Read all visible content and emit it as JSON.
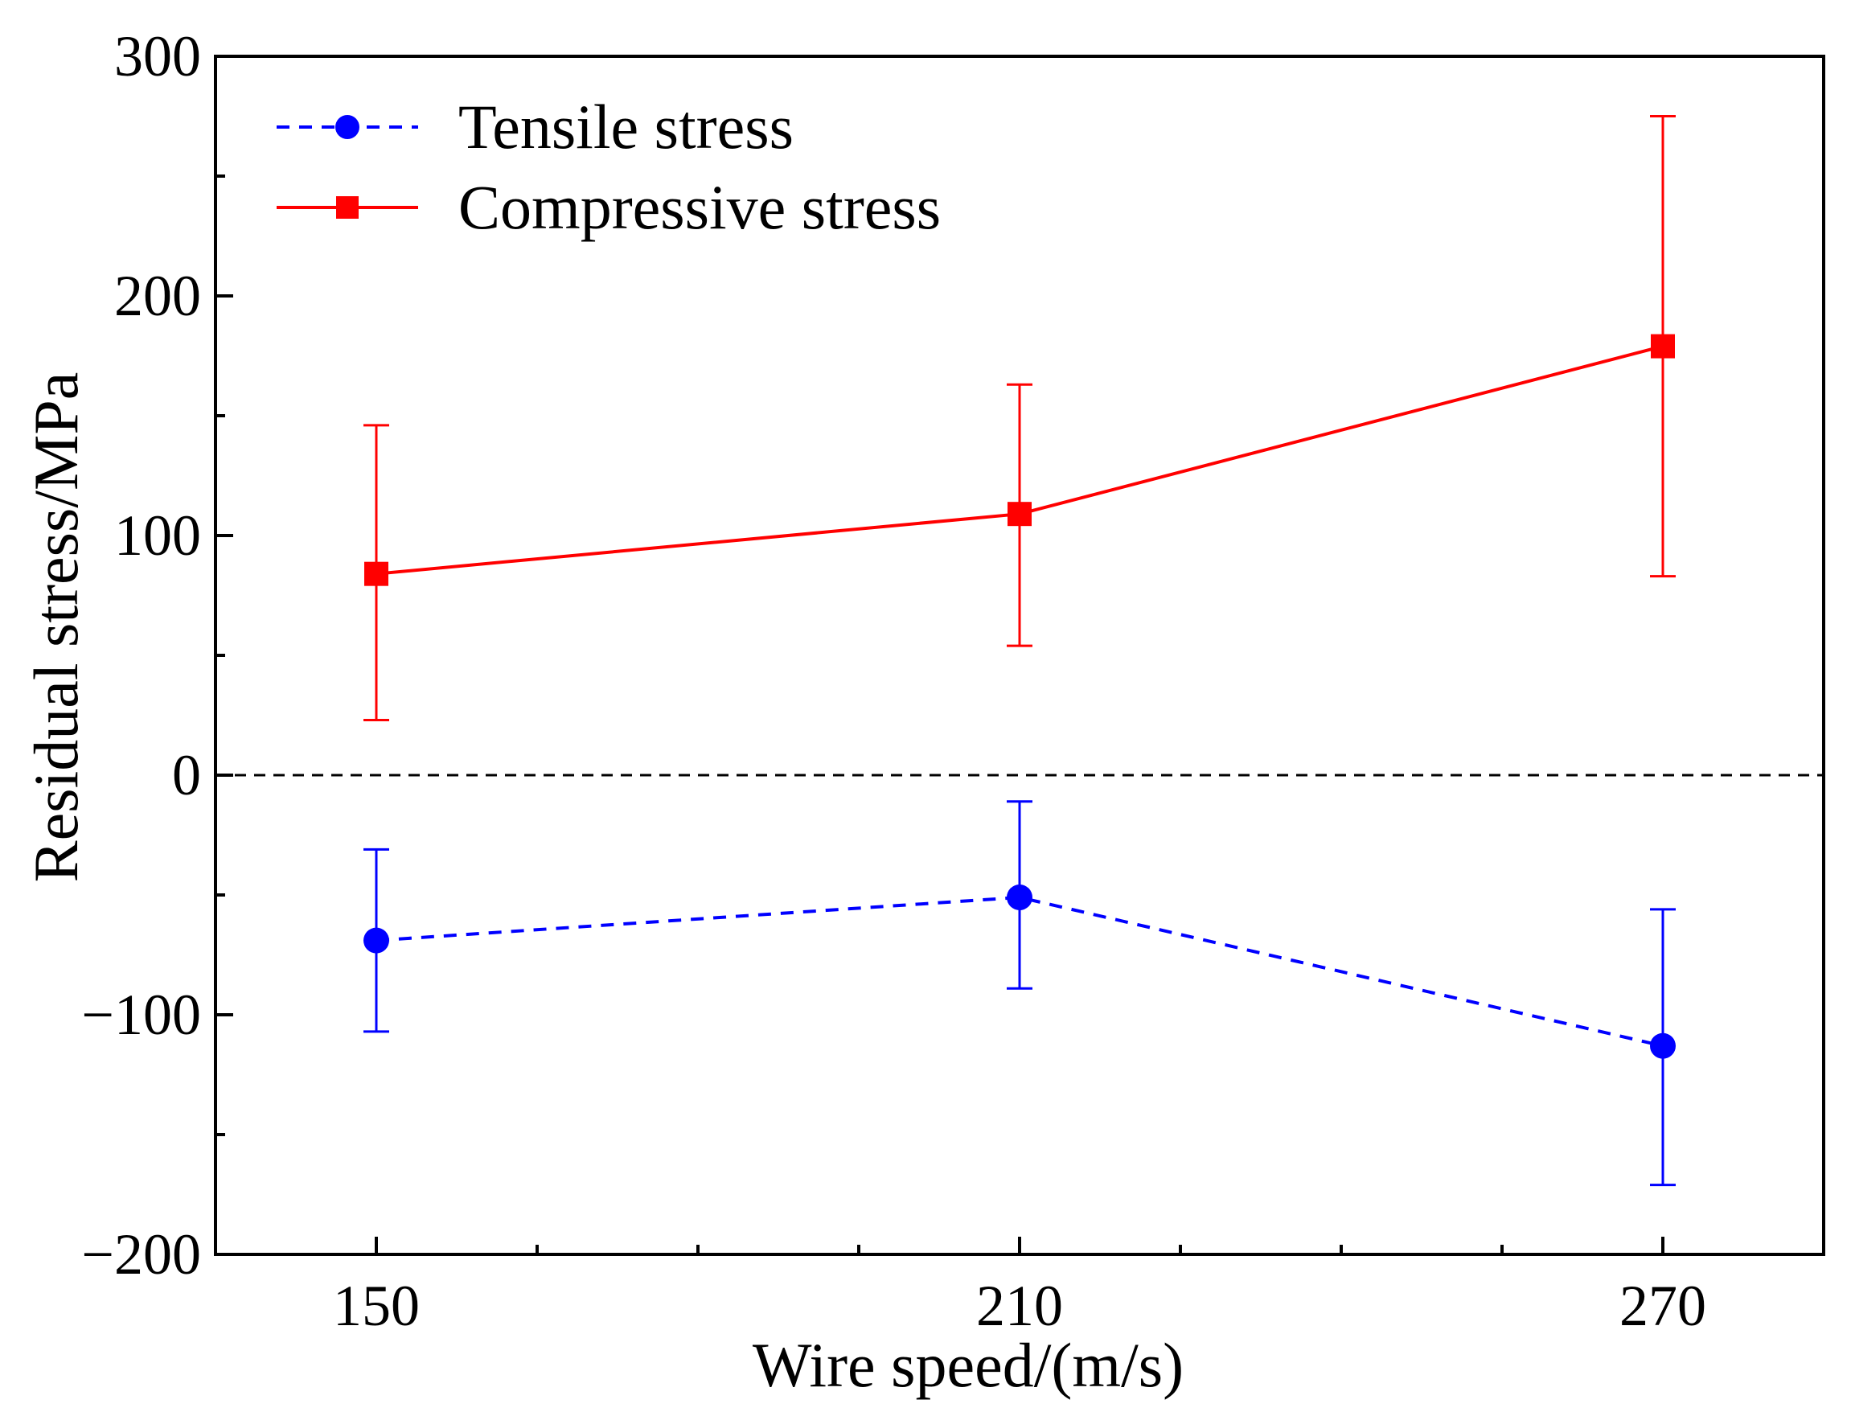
{
  "chart_data": {
    "type": "line",
    "title": "",
    "xlabel": "Wire speed/(m/s)",
    "ylabel": "Residual stress/MPa",
    "x_ticks": [
      "150",
      "210",
      "270"
    ],
    "y_ticks": [
      "300",
      "200",
      "100",
      "0",
      "−100",
      "−200"
    ],
    "xlim": [
      135,
      285
    ],
    "ylim": [
      -200,
      300
    ],
    "x_minor_step": 15,
    "y_minor_step": 50,
    "zero_reference_line": true,
    "legend_position": "top-left",
    "series": [
      {
        "name": "Tensile stress",
        "color": "#0000ff",
        "marker": "circle",
        "line_style": "dashed",
        "x": [
          150,
          210,
          270
        ],
        "values": [
          -69,
          -51,
          -113
        ],
        "err_low": [
          -107,
          -89,
          -171
        ],
        "err_high": [
          -31,
          -11,
          -56
        ]
      },
      {
        "name": "Compressive stress",
        "color": "#ff0000",
        "marker": "square",
        "line_style": "solid",
        "x": [
          150,
          210,
          270
        ],
        "values": [
          84,
          109,
          179
        ],
        "err_low": [
          23,
          54,
          83
        ],
        "err_high": [
          146,
          163,
          275
        ]
      }
    ]
  }
}
